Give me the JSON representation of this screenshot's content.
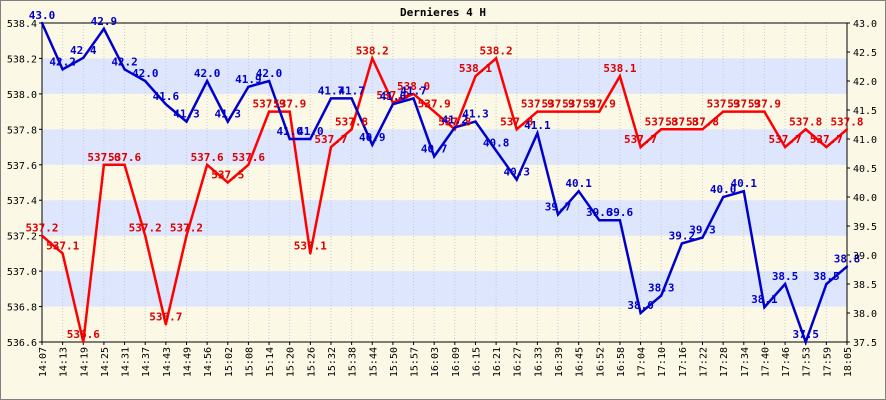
{
  "chart_data": {
    "type": "line",
    "title": "Dernieres 4 H",
    "categories": [
      "14:07",
      "14:13",
      "14:19",
      "14:25",
      "14:31",
      "14:37",
      "14:43",
      "14:49",
      "14:56",
      "15:02",
      "15:08",
      "15:14",
      "15:20",
      "15:26",
      "15:32",
      "15:38",
      "15:44",
      "15:50",
      "15:57",
      "16:03",
      "16:09",
      "16:15",
      "16:21",
      "16:27",
      "16:33",
      "16:39",
      "16:45",
      "16:52",
      "16:58",
      "17:04",
      "17:10",
      "17:16",
      "17:22",
      "17:28",
      "17:34",
      "17:40",
      "17:46",
      "17:53",
      "17:59",
      "18:05"
    ],
    "y_left": {
      "range": [
        536.6,
        538.4
      ],
      "ticks": [
        "536.6",
        "536.8",
        "537.0",
        "537.2",
        "537.4",
        "537.6",
        "537.8",
        "538.0",
        "538.2",
        "538.4"
      ]
    },
    "y_right": {
      "range": [
        37.5,
        43.0
      ],
      "ticks": [
        "37.5",
        "38.0",
        "38.5",
        "39.0",
        "39.5",
        "40.0",
        "40.5",
        "41.0",
        "41.5",
        "42.0",
        "42.5",
        "43.0"
      ]
    },
    "grid": true,
    "colors": {
      "red": "#ff0000",
      "blue": "#0000cc",
      "band": "#dde6fc",
      "background": "#fbf8e6",
      "label_red": "#dd0000",
      "label_blue": "#0000cc"
    },
    "series": [
      {
        "axis": "left",
        "color": "red",
        "values": [
          537.2,
          537.1,
          536.6,
          537.6,
          537.6,
          537.2,
          536.7,
          537.2,
          537.6,
          537.5,
          537.6,
          537.9,
          537.9,
          537.1,
          537.7,
          537.8,
          538.2,
          537.95,
          538.0,
          537.9,
          537.8,
          538.1,
          538.2,
          537.8,
          537.9,
          537.9,
          537.9,
          537.9,
          538.1,
          537.7,
          537.8,
          537.8,
          537.8,
          537.9,
          537.9,
          537.9,
          537.7,
          537.8,
          537.7,
          537.8
        ],
        "labels": [
          "537.2",
          "537.1",
          "536.6",
          "537.6",
          "537.6",
          "537.2",
          "536.7",
          "537.2",
          "537.6",
          "537.5",
          "537.6",
          "537.9",
          "537.9",
          "537.1",
          "537.7",
          "537.8",
          "538.2",
          "537.9",
          "538.0",
          "537.9",
          "537.8",
          "538.1",
          "538.2",
          "537.8",
          "537.9",
          "537.9",
          "537.9",
          "537.9",
          "538.1",
          "537.7",
          "537.8",
          "537.8",
          "537.8",
          "537.9",
          "537.9",
          "537.9",
          "537.7",
          "537.8",
          "537.7",
          "537.8"
        ]
      },
      {
        "axis": "right",
        "color": "blue",
        "values": [
          43.0,
          42.2,
          42.4,
          42.9,
          42.2,
          42.0,
          41.6,
          41.3,
          42.0,
          41.3,
          41.9,
          42.0,
          41.0,
          41.0,
          41.7,
          41.7,
          40.9,
          41.6,
          41.7,
          40.7,
          41.2,
          41.3,
          40.8,
          40.3,
          41.1,
          39.7,
          40.1,
          39.6,
          39.6,
          38.0,
          38.3,
          39.2,
          39.3,
          40.0,
          40.1,
          38.1,
          38.5,
          37.5,
          38.5,
          38.8
        ],
        "labels": [
          "43.0",
          "42.2",
          "42.4",
          "42.9",
          "42.2",
          "42.0",
          "41.6",
          "41.3",
          "42.0",
          "41.3",
          "41.9",
          "42.0",
          "41.0",
          "41.0",
          "41.7",
          "41.7",
          "40.9",
          "41.6",
          "41.7",
          "40.7",
          "41.2",
          "41.3",
          "40.8",
          "40.3",
          "41.1",
          "39.7",
          "40.1",
          "39.6",
          "39.6",
          "38.0",
          "38.3",
          "39.2",
          "39.3",
          "40.0",
          "40.1",
          "38.1",
          "38.5",
          "37.5",
          "38.5",
          "38.8"
        ]
      }
    ]
  }
}
